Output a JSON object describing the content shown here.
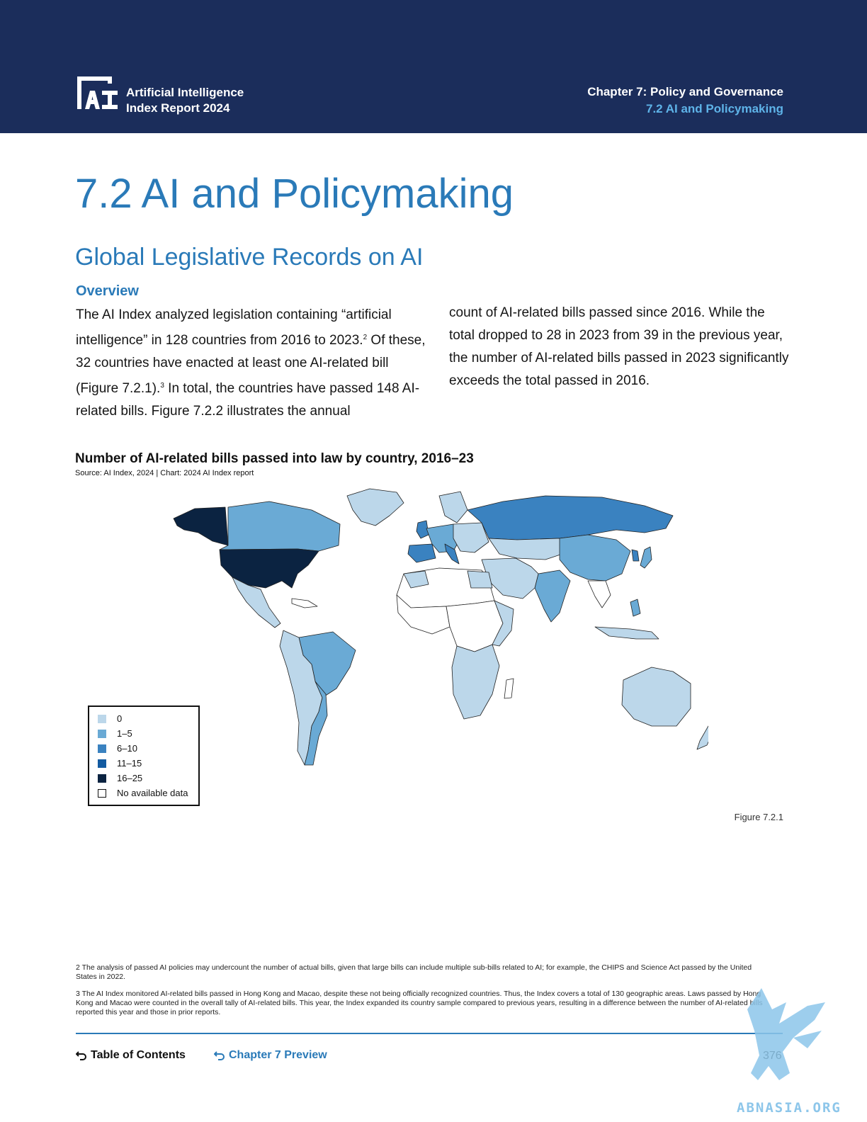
{
  "header": {
    "report_title_line1": "Artificial Intelligence",
    "report_title_line2": "Index Report 2024",
    "chapter_line1": "Chapter 7: Policy and Governance",
    "chapter_line2": "7.2 AI and Policymaking",
    "logo_icon": "ai-index-logo"
  },
  "page_title": "7.2 AI and Policymaking",
  "section_title": "Global Legislative Records on AI",
  "overview_heading": "Overview",
  "body": {
    "col1_a": "The AI Index analyzed legislation containing “artificial intelligence” in 128 countries from 2016 to 2023.",
    "sup2": "2",
    "col1_b": " Of these, 32 countries have enacted at least one AI-related bill (Figure 7.2.1).",
    "sup3": "3",
    "col1_c": " In total, the countries have passed 148 AI-related bills. Figure 7.2.2 illustrates the annual",
    "col2": "count of AI-related bills passed since 2016. While the total dropped to 28 in 2023 from 39 in the previous year, the number of AI-related bills passed in 2023 significantly exceeds the total passed in 2016."
  },
  "chart": {
    "title": "Number of AI-related bills passed into law by country, 2016–23",
    "source": "Source: AI Index, 2024 | Chart: 2024 AI Index report",
    "legend": [
      {
        "label": "0",
        "color": "#bcd7ea"
      },
      {
        "label": "1–5",
        "color": "#6aaad5"
      },
      {
        "label": "6–10",
        "color": "#3a82c0"
      },
      {
        "label": "11–15",
        "color": "#135ba1"
      },
      {
        "label": "16–25",
        "color": "#0b2341"
      },
      {
        "label": "No available data",
        "color": "#ffffff"
      }
    ],
    "caption": "Figure 7.2.1"
  },
  "footnotes": {
    "fn2": "2 The analysis of passed AI policies may undercount the number of actual bills, given that large bills can include multiple sub-bills related to AI; for example, the CHIPS and Science Act passed by the United States in 2022.",
    "fn3": "3 The AI Index monitored AI-related bills passed in Hong Kong and Macao, despite these not being officially recognized countries. Thus, the Index covers a total of 130 geographic areas. Laws passed by Hong Kong and Macao were counted in the overall tally of AI-related bills. This year, the Index expanded its country sample compared to previous years, resulting in a difference between the number of AI-related bills reported this year and those in prior reports."
  },
  "footer": {
    "toc_label": "Table of Contents",
    "chapter_preview_label": "Chapter 7 Preview",
    "page_number": "376",
    "watermark_text": "ABNASIA.ORG"
  }
}
